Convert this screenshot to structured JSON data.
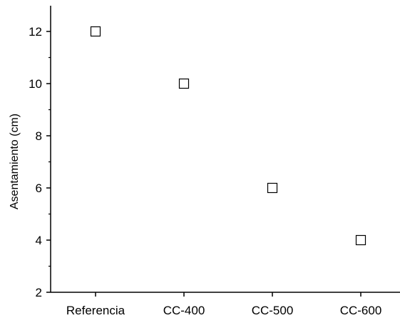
{
  "chart_data": {
    "type": "scatter",
    "title": "",
    "xlabel": "",
    "ylabel": "Asentamiento (cm)",
    "categories": [
      "Referencia",
      "CC-400",
      "CC-500",
      "CC-600"
    ],
    "values": [
      12,
      10,
      6,
      4
    ],
    "ylim": [
      2,
      13
    ],
    "y_ticks": [
      "2",
      "4",
      "6",
      "8",
      "10",
      "12"
    ],
    "marker": "open-square",
    "grid": false,
    "legend": "none",
    "colors": {
      "axis": "#000000",
      "marker_stroke": "#000000",
      "marker_fill": "#ffffff"
    }
  }
}
